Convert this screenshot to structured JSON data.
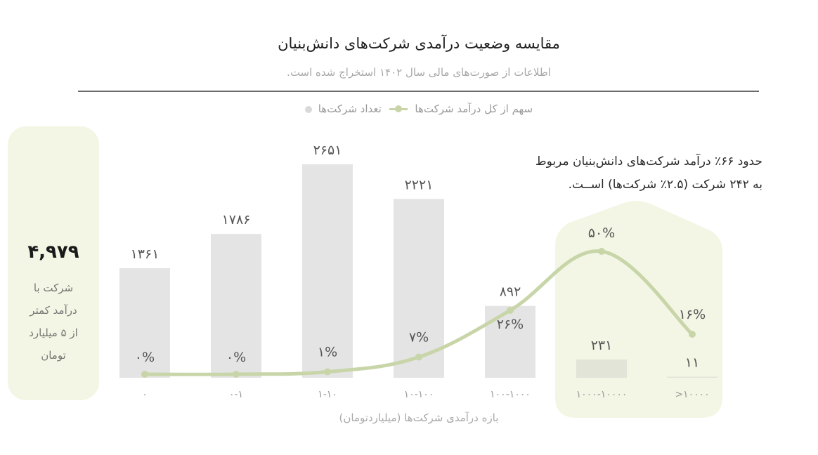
{
  "header": {
    "title": "مقایسه وضعیت درآمدی شرکت‌های دانش‌بنیان",
    "subtitle": "اطلاعات از صورت‌های مالی سال ۱۴۰۲ استخراج شده است."
  },
  "legend": {
    "line_label": "سهم از کل درآمد شرکت‌ها",
    "bar_label": "تعداد شرکت‌ها"
  },
  "summary": {
    "value": "۴,۹۷۹",
    "lines": [
      "شرکت با",
      "درآمد کمتر",
      "از ۵ میلیارد",
      "تومان"
    ]
  },
  "annotation": {
    "line1": "حدود ۶۶٪ درآمد شرکت‌های دانش‌بنیان مربوط",
    "line2": "به ۲۴۲ شرکت (۲.۵٪ شرکت‌ها) اســت."
  },
  "colors": {
    "bar": "#e4e4e4",
    "bar_highlight": "#e2e4d8",
    "line": "#c8d5a8",
    "highlight_bg": "#f3f6e4",
    "text": "#555555",
    "muted": "#a8a8a8"
  },
  "chart_data": {
    "type": "bar",
    "title": "مقایسه وضعیت درآمدی شرکت‌های دانش‌بنیان",
    "subtitle": "اطلاعات از صورت‌های مالی سال ۱۴۰۲ استخراج شده است.",
    "xlabel": "بازه درآمدی شرکت‌ها (میلیاردتومان)",
    "ylabel": "",
    "categories": [
      "0",
      "0-1",
      "1-10",
      "10-100",
      "100-1000",
      "1000-10000",
      ">10000"
    ],
    "category_labels": [
      "۰",
      "۰-۱",
      "۱-۱۰",
      "۱۰-۱۰۰",
      "۱۰۰-۱۰۰۰",
      "۱۰۰۰-۱۰۰۰۰",
      ">۱۰۰۰۰"
    ],
    "series": [
      {
        "name": "تعداد شرکت‌ها",
        "type": "bar",
        "values": [
          1361,
          1786,
          2651,
          2221,
          892,
          231,
          11
        ],
        "labels": [
          "۱۳۶۱",
          "۱۷۸۶",
          "۲۶۵۱",
          "۲۲۲۱",
          "۸۹۲",
          "۲۳۱",
          "۱۱"
        ]
      },
      {
        "name": "سهم از کل درآمد شرکت‌ها",
        "type": "line",
        "unit": "%",
        "values": [
          0,
          0,
          1,
          7,
          26,
          50,
          16
        ],
        "labels": [
          "۰%",
          "۰%",
          "۱%",
          "۷%",
          "۲۶%",
          "۵۰%",
          "۱۶%"
        ]
      }
    ],
    "highlighted_categories": [
      "1000-10000",
      ">10000"
    ],
    "annotation": "حدود ۶۶٪ درآمد شرکت‌های دانش‌بنیان مربوط به ۲۴۲ شرکت (۲.۵٪ شرکت‌ها) است.",
    "side_stat": {
      "value": 4979,
      "label": "شرکت با درآمد کمتر از ۵ میلیارد تومان"
    },
    "legend_position": "top",
    "grid": false
  }
}
